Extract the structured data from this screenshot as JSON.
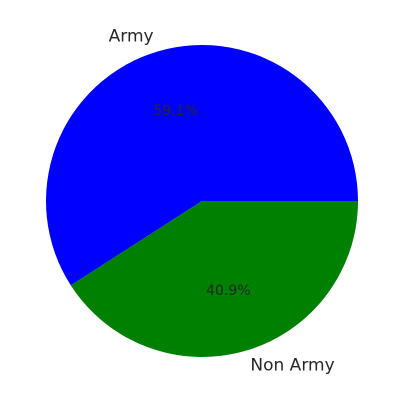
{
  "chart_data": {
    "type": "pie",
    "categories": [
      "Army",
      "Non Army"
    ],
    "values": [
      59.1,
      40.9
    ],
    "percent_labels": [
      "59.1%",
      "40.9%"
    ],
    "colors": [
      "#0000ff",
      "#008000"
    ],
    "start_angle_deg": 0,
    "direction": "counterclockwise"
  }
}
